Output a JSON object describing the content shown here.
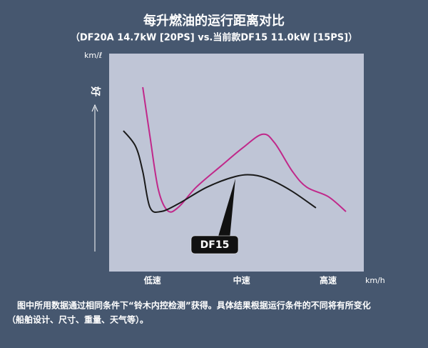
{
  "chart_data": {
    "type": "line",
    "title": "每升燃油的运行距离对比",
    "subtitle": "（DF20A 14.7kW [20PS] vs.当前款DF15 11.0kW [15PS]）",
    "y_unit": "km/ℓ",
    "x_unit": "km/h",
    "y_annotation": "好",
    "xlim": [
      0,
      100
    ],
    "ylim": [
      0,
      100
    ],
    "xticks": [
      {
        "value": 17,
        "label": "低速"
      },
      {
        "value": 52,
        "label": "中速"
      },
      {
        "value": 86,
        "label": "高速"
      }
    ],
    "series": [
      {
        "color": "#c0288a",
        "x": [
          13.2,
          16.0,
          19.3,
          23.0,
          27.2,
          34.2,
          44.0,
          52.4,
          60.2,
          65.0,
          72.0,
          77.6,
          86.0,
          93.0
        ],
        "values": [
          84.6,
          62.3,
          37.7,
          27.9,
          29.5,
          38.7,
          48.5,
          56.7,
          63.0,
          59.0,
          45.9,
          38.7,
          34.4,
          27.5
        ]
      },
      {
        "name": "DF15",
        "color": "#1a1a1a",
        "x": [
          5.6,
          10.4,
          13.2,
          16.0,
          20.2,
          27.2,
          38.4,
          49.6,
          56.6,
          63.6,
          72.0,
          81.2
        ],
        "values": [
          64.6,
          57.4,
          45.9,
          29.5,
          27.5,
          31.1,
          38.7,
          43.6,
          44.3,
          42.0,
          36.7,
          29.2
        ]
      }
    ],
    "footnote_lines": [
      "图中所用数据通过相同条件下“铃木内控检测”获得。具体结果根据运行条件的不同将有所变化",
      "（船舶设计、尺寸、重量、天气等）。"
    ]
  }
}
